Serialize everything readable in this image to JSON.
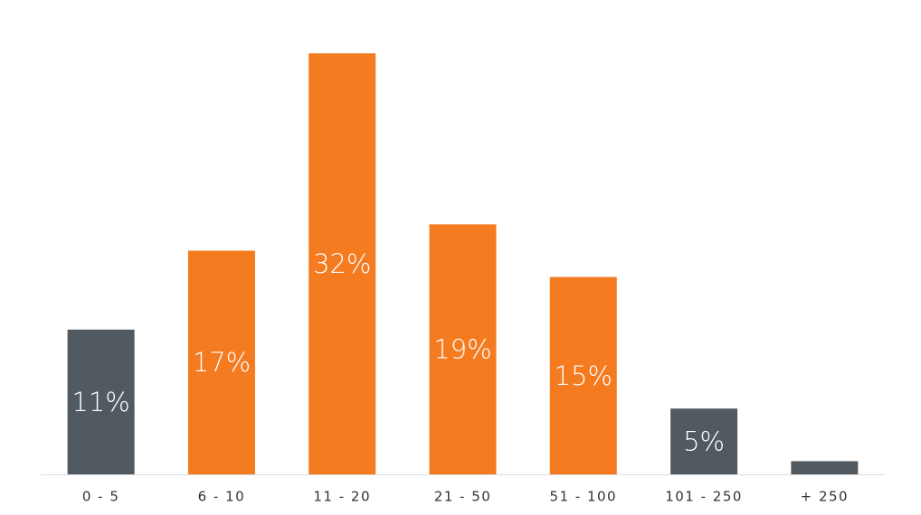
{
  "chart_data": {
    "type": "bar",
    "categories": [
      "0 - 5",
      "6 - 10",
      "11 - 20",
      "21 - 50",
      "51 - 100",
      "101 - 250",
      "+ 250"
    ],
    "values": [
      11,
      17,
      32,
      19,
      15,
      5,
      1
    ],
    "value_labels": [
      "11%",
      "17%",
      "32%",
      "19%",
      "15%",
      "5%",
      null
    ],
    "colors": [
      "#525a61",
      "#f47b20",
      "#f47b20",
      "#f47b20",
      "#f47b20",
      "#525a61",
      "#525a61"
    ],
    "ylim": [
      0,
      32
    ]
  }
}
